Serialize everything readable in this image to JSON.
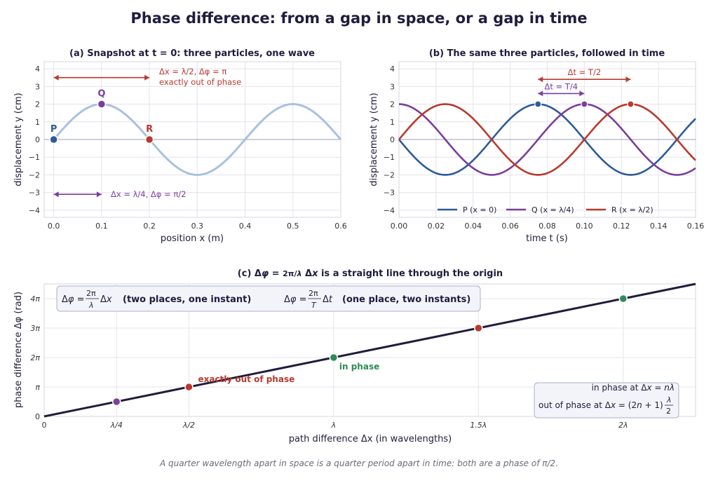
{
  "title": "Phase difference:  from a gap in space, or a gap in time",
  "footnote": "A quarter wavelength apart in space is a quarter period apart in time: both are a phase of π/2.",
  "colors": {
    "P": "#2e5a9a",
    "Q": "#7a3f9a",
    "R": "#b83a2e",
    "wave": "#a7c2e0",
    "line": "#1f1d3d",
    "green": "#2e8a57",
    "grid": "#e4e4ec"
  },
  "chart_data": [
    {
      "id": "a",
      "type": "line",
      "title": "(a)  Snapshot at t = 0:  three particles, one wave",
      "xlabel": "position  x  (m)",
      "ylabel": "displacement  y  (cm)",
      "xlim": [
        -0.02,
        0.6
      ],
      "ylim": [
        -4.4,
        4.4
      ],
      "xticks": [
        0,
        0.1,
        0.2,
        0.3,
        0.4,
        0.5,
        0.6
      ],
      "xtick_labels": [
        "0.0",
        "0.1",
        "0.2",
        "0.3",
        "0.4",
        "0.5",
        "0.6"
      ],
      "yticks": [
        -4,
        -3,
        -2,
        -1,
        0,
        1,
        2,
        3,
        4
      ],
      "ytick_labels": [
        "−4",
        "−3",
        "−2",
        "−1",
        "0",
        "1",
        "2",
        "3",
        "4"
      ],
      "grid": true,
      "wave": {
        "amplitude": 2,
        "wavelength": 0.4,
        "x_range": [
          0,
          0.6
        ]
      },
      "points": [
        {
          "name": "P",
          "x": 0,
          "y": 0
        },
        {
          "name": "Q",
          "x": 0.1,
          "y": 2
        },
        {
          "name": "R",
          "x": 0.2,
          "y": 0
        }
      ],
      "annotations": [
        {
          "id": "half",
          "text_line1": "Δx = λ/2,  Δφ = π",
          "text_line2": "exactly out of phase",
          "from": [
            0,
            3.5
          ],
          "to": [
            0.2,
            3.5
          ]
        },
        {
          "id": "quarter",
          "text": "Δx = λ/4,  Δφ = π/2",
          "from": [
            0,
            -3.1
          ],
          "to": [
            0.1,
            -3.1
          ]
        }
      ]
    },
    {
      "id": "b",
      "type": "line",
      "title": "(b)  The same three particles, followed in time",
      "xlabel": "time  t  (s)",
      "ylabel": "displacement  y  (cm)",
      "xlim": [
        0,
        0.16
      ],
      "ylim": [
        -4.4,
        4.4
      ],
      "xticks": [
        0,
        0.02,
        0.04,
        0.06,
        0.08,
        0.1,
        0.12,
        0.14,
        0.16
      ],
      "xtick_labels": [
        "0.00",
        "0.02",
        "0.04",
        "0.06",
        "0.08",
        "0.10",
        "0.12",
        "0.14",
        "0.16"
      ],
      "yticks": [
        -4,
        -3,
        -2,
        -1,
        0,
        1,
        2,
        3,
        4
      ],
      "ytick_labels": [
        "−4",
        "−3",
        "−2",
        "−1",
        "0",
        "1",
        "2",
        "3",
        "4"
      ],
      "grid": true,
      "legend_position": "bottom-center",
      "period": 0.1,
      "amplitude": 2,
      "series": [
        {
          "name": "P  (x = 0)",
          "key": "P",
          "phase_shift_fraction": 0
        },
        {
          "name": "Q  (x = λ/4)",
          "key": "Q",
          "phase_shift_fraction": 0.25
        },
        {
          "name": "R  (x = λ/2)",
          "key": "R",
          "phase_shift_fraction": 0.5
        }
      ],
      "peaks": [
        {
          "key": "P",
          "x": 0.075,
          "y": 2
        },
        {
          "key": "Q",
          "x": 0.1,
          "y": 2
        },
        {
          "key": "R",
          "x": 0.125,
          "y": 2
        }
      ],
      "annotations": [
        {
          "id": "dtT2",
          "text": "Δt = T/2",
          "from": [
            0.075,
            3.4
          ],
          "to": [
            0.125,
            3.4
          ]
        },
        {
          "id": "dtT4",
          "text": "Δt = T/4",
          "from": [
            0.075,
            2.6
          ],
          "to": [
            0.1,
            2.6
          ]
        }
      ]
    },
    {
      "id": "c",
      "type": "line",
      "title": "(c)  Δφ = (2π/λ) Δx  is a straight line through the origin",
      "xlabel": "path difference  Δx  (in wavelengths)",
      "ylabel": "phase difference  Δφ  (rad)",
      "xlim": [
        0,
        2.25
      ],
      "ylim": [
        0,
        4.5
      ],
      "xticks": [
        0,
        0.25,
        0.5,
        1,
        1.5,
        2
      ],
      "xtick_labels": [
        "0",
        "λ/4",
        "λ/2",
        "λ",
        "1.5λ",
        "2λ"
      ],
      "yticks": [
        0,
        1,
        2,
        3,
        4
      ],
      "ytick_labels": [
        "0",
        "π",
        "2π",
        "3π",
        "4π"
      ],
      "grid": true,
      "line": {
        "x": [
          0,
          2.25
        ],
        "y": [
          0,
          4.5
        ]
      },
      "points": [
        {
          "x": 0.25,
          "y": 0.5,
          "key": "Q"
        },
        {
          "x": 0.5,
          "y": 1,
          "key": "R"
        },
        {
          "x": 1,
          "y": 2,
          "key": "green"
        },
        {
          "x": 1.5,
          "y": 3,
          "key": "R"
        },
        {
          "x": 2,
          "y": 4,
          "key": "green"
        }
      ],
      "labels": {
        "out_of_phase": "exactly out of phase",
        "in_phase": "in phase"
      },
      "formula_box": {
        "left_text": "(two places, one instant)",
        "right_text": "(one place, two instants)"
      },
      "legend_box": {
        "line1": "in phase at Δx = nλ",
        "line2": "out of phase at Δx = (2n + 1)λ/2"
      }
    }
  ]
}
